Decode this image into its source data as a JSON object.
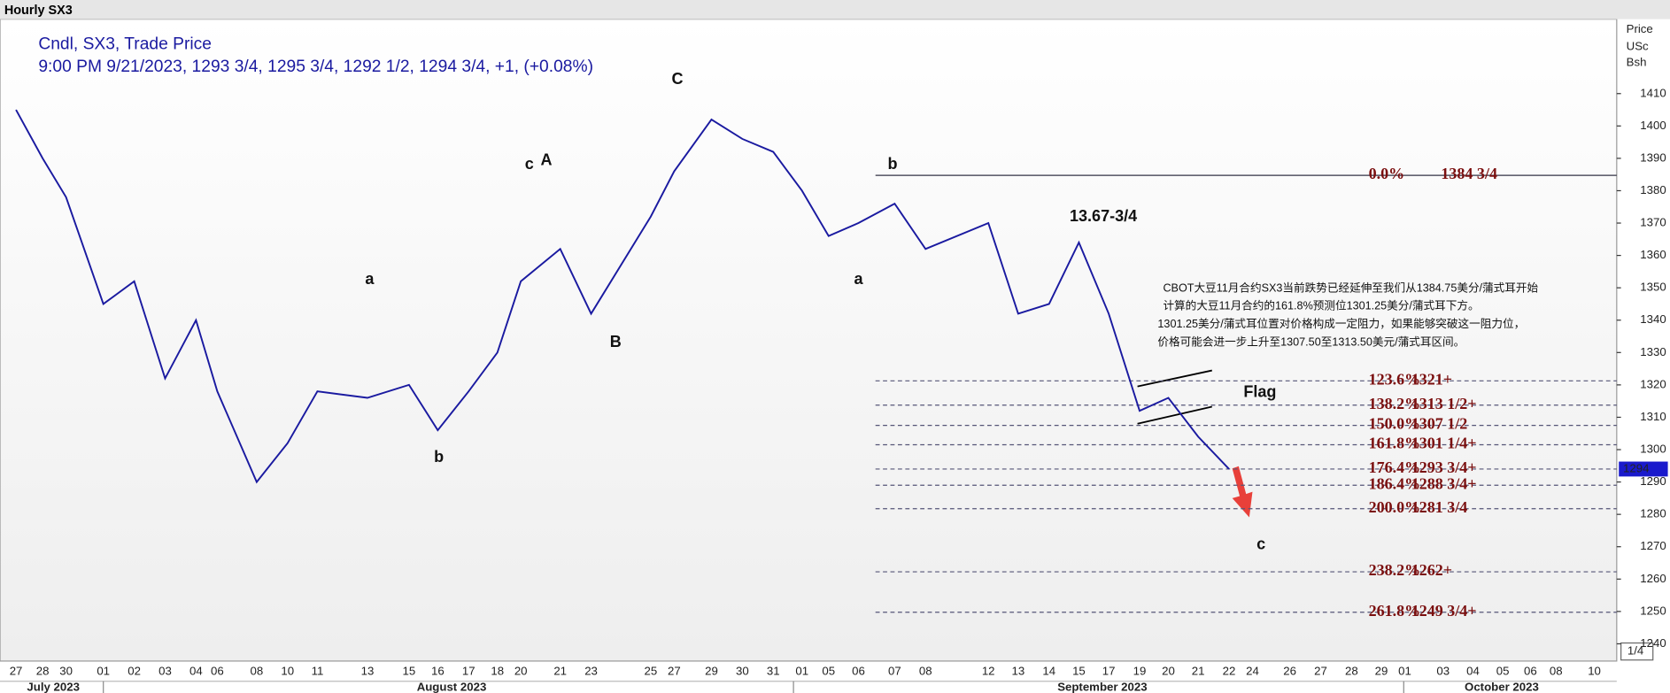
{
  "chart_data": {
    "type": "line",
    "header": "Hourly SX3",
    "legend_title": "Cndl, SX3, Trade Price",
    "legend_detail": "9:00 PM 9/21/2023, 1293 3/4, 1295 3/4, 1292 1/2, 1294 3/4, +1, (+0.08%)",
    "axis_title": [
      "Price",
      "USc",
      "Bsh"
    ],
    "categories": [
      "27",
      "28",
      "30",
      "01",
      "02",
      "03",
      "04",
      "06",
      "08",
      "10",
      "11",
      "13",
      "15",
      "16",
      "17",
      "18",
      "20",
      "21",
      "23",
      "25",
      "27",
      "29",
      "30",
      "31",
      "01",
      "05",
      "06",
      "07",
      "08",
      "12",
      "13",
      "14",
      "15",
      "17",
      "19",
      "20",
      "21",
      "22",
      "24",
      "26",
      "27",
      "28",
      "29",
      "01",
      "03",
      "04",
      "05",
      "06",
      "08",
      "10"
    ],
    "months": [
      "July 2023",
      "August 2023",
      "September 2023",
      "October 2023"
    ],
    "series": [
      {
        "name": "SX3",
        "color": "#1a1aa0",
        "values": [
          1405,
          1390,
          1378,
          1345,
          1352,
          1322,
          1340,
          1318,
          1290,
          1302,
          1318,
          1316,
          1320,
          1306,
          1318,
          1330,
          1352,
          1362,
          1342,
          1372,
          1386,
          1402,
          1396,
          1392,
          1380,
          1366,
          1370,
          1376,
          1362,
          1370,
          1342,
          1345,
          1364,
          1342,
          1312,
          1316,
          1304,
          1294,
          null,
          null,
          null,
          null,
          null,
          null,
          null,
          null,
          null,
          null,
          null,
          null
        ]
      }
    ],
    "ylim": [
      1235,
      1433
    ],
    "yticks": [
      1240,
      1250,
      1260,
      1270,
      1280,
      1290,
      1300,
      1310,
      1320,
      1330,
      1340,
      1350,
      1360,
      1370,
      1380,
      1390,
      1400,
      1410
    ],
    "last_price": 1294,
    "increment": "1/4",
    "fib_levels": [
      {
        "ratio": "0.0%",
        "price": "1384 3/4",
        "value": 1384.75
      },
      {
        "ratio": "123.6%",
        "price": "1321+",
        "value": 1321.25
      },
      {
        "ratio": "138.2%",
        "price": "1313 1/2+",
        "value": 1313.75
      },
      {
        "ratio": "150.0%",
        "price": "1307 1/2",
        "value": 1307.5
      },
      {
        "ratio": "161.8%",
        "price": "1301 1/4+",
        "value": 1301.5
      },
      {
        "ratio": "176.4%",
        "price": "1293 3/4+",
        "value": 1294
      },
      {
        "ratio": "186.4%",
        "price": "1288 3/4+",
        "value": 1289
      },
      {
        "ratio": "200.0%",
        "price": "1281 3/4",
        "value": 1281.75
      },
      {
        "ratio": "238.2%",
        "price": "1262+",
        "value": 1262.25
      },
      {
        "ratio": "261.8%",
        "price": "1249 3/4+",
        "value": 1249.75
      }
    ],
    "annotations": [
      "C",
      "c",
      "A",
      "a",
      "B",
      "b",
      "b",
      "a",
      "13.67-3/4",
      "Flag",
      "c"
    ],
    "commentary": [
      "CBOT大豆11月合约SX3当前跌势已经延伸至我们从1384.75美分/蒲式耳开始",
      "计算的大豆11月合约的161.8%预测位1301.25美分/蒲式耳下方。",
      "1301.25美分/蒲式耳位置对价格构成一定阻力，如果能够突破这一阻力位，",
      "价格可能会进一步上升至1307.50至1313.50美元/蒲式耳区间。"
    ]
  }
}
